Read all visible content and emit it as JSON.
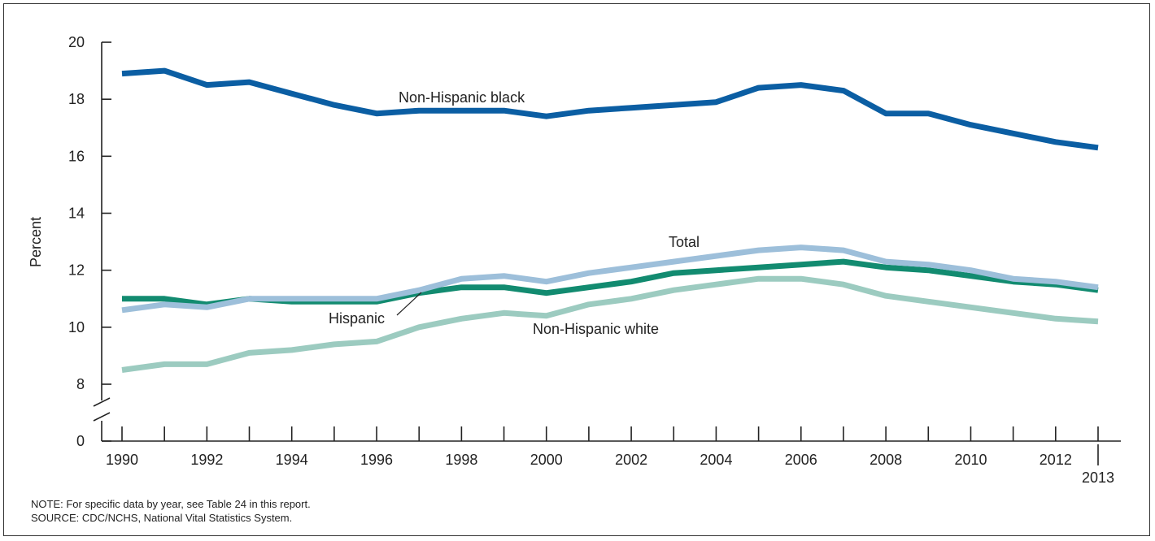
{
  "chart_data": {
    "type": "line",
    "title": "",
    "ylabel": "Percent",
    "xlabel": "",
    "ylim": [
      0,
      20
    ],
    "y_axis_break": true,
    "yticks": [
      0,
      8,
      10,
      12,
      14,
      16,
      18,
      20
    ],
    "xticks": [
      "1990",
      "1992",
      "1994",
      "1996",
      "1998",
      "2000",
      "2002",
      "2004",
      "2006",
      "2008",
      "2010",
      "2012",
      "2013"
    ],
    "x": [
      1990,
      1991,
      1992,
      1993,
      1994,
      1995,
      1996,
      1997,
      1998,
      1999,
      2000,
      2001,
      2002,
      2003,
      2004,
      2005,
      2006,
      2007,
      2008,
      2009,
      2010,
      2011,
      2012,
      2013
    ],
    "series": [
      {
        "name": "Non-Hispanic black",
        "color": "#0b5ea3",
        "values": [
          18.9,
          19.0,
          18.5,
          18.6,
          18.2,
          17.8,
          17.5,
          17.6,
          17.6,
          17.6,
          17.4,
          17.6,
          17.7,
          17.8,
          17.9,
          18.4,
          18.5,
          18.3,
          17.5,
          17.5,
          17.1,
          16.8,
          16.5,
          16.3
        ]
      },
      {
        "name": "Total",
        "color": "#9dbfda",
        "values": [
          10.6,
          10.8,
          10.7,
          11.0,
          11.0,
          11.0,
          11.0,
          11.3,
          11.7,
          11.8,
          11.6,
          11.9,
          12.1,
          12.3,
          12.5,
          12.7,
          12.8,
          12.7,
          12.3,
          12.2,
          12.0,
          11.7,
          11.6,
          11.4
        ]
      },
      {
        "name": "Hispanic",
        "color": "#128b70",
        "values": [
          11.0,
          11.0,
          10.8,
          11.0,
          10.9,
          10.9,
          10.9,
          11.2,
          11.4,
          11.4,
          11.2,
          11.4,
          11.6,
          11.9,
          12.0,
          12.1,
          12.2,
          12.3,
          12.1,
          12.0,
          11.8,
          11.6,
          11.5,
          11.3
        ]
      },
      {
        "name": "Non-Hispanic white",
        "color": "#9ccbc0",
        "values": [
          8.5,
          8.7,
          8.7,
          9.1,
          9.2,
          9.4,
          9.5,
          10.0,
          10.3,
          10.5,
          10.4,
          10.8,
          11.0,
          11.3,
          11.5,
          11.7,
          11.7,
          11.5,
          11.1,
          10.9,
          10.7,
          10.5,
          10.3,
          10.2
        ]
      }
    ]
  },
  "notes": {
    "note": "NOTE: For specific data by year, see Table 24 in this report.",
    "source": "SOURCE: CDC/NCHS, National Vital Statistics System."
  }
}
